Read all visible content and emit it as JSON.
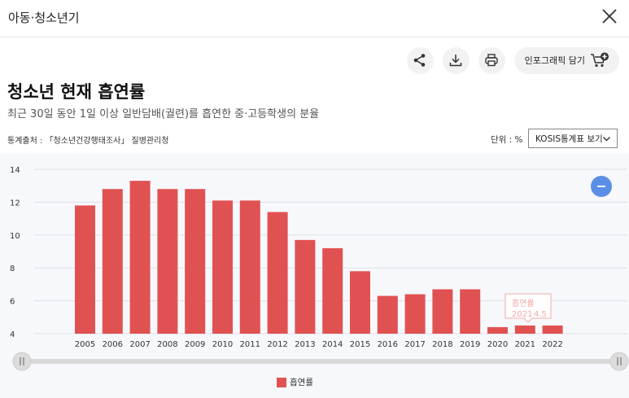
{
  "header": {
    "title": "아동·청소년기"
  },
  "toolbar": {
    "infographic_label": "인포그래픽 담기"
  },
  "page": {
    "title": "청소년 현재 흡연률",
    "subtitle": "최근 30일 동안 1일 이상 일반담배(궐련)를 흡연한 중·고등학생의 분율",
    "source": "통계출처 : 「청소년건강행태조사」 질병관리청",
    "unit": "단위 : %",
    "kosis_button": "KOSIS통계표 보기"
  },
  "colors": {
    "bar": "#e05252",
    "accent": "#5b8ee6"
  },
  "tooltip": {
    "series": "흡연률",
    "year": "2021",
    "value": "4.5"
  },
  "chart_data": {
    "type": "bar",
    "categories": [
      "2005",
      "2006",
      "2007",
      "2008",
      "2009",
      "2010",
      "2011",
      "2012",
      "2013",
      "2014",
      "2015",
      "2016",
      "2017",
      "2018",
      "2019",
      "2020",
      "2021",
      "2022"
    ],
    "series": [
      {
        "name": "흡연률",
        "values": [
          11.8,
          12.8,
          13.3,
          12.8,
          12.8,
          12.1,
          12.1,
          11.4,
          9.7,
          9.2,
          7.8,
          6.3,
          6.4,
          6.7,
          6.7,
          4.4,
          4.5,
          4.5
        ]
      }
    ],
    "y_ticks": [
      4,
      6,
      8,
      10,
      12,
      14
    ],
    "ylim": [
      4,
      14
    ],
    "grid": true,
    "legend": "bottom-center"
  }
}
